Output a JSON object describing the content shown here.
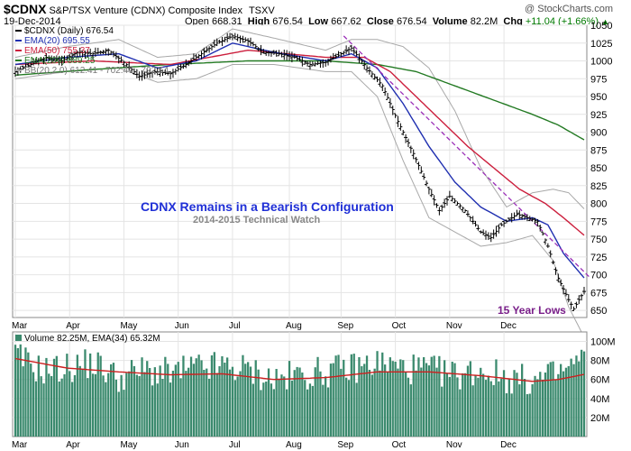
{
  "header": {
    "symbol": "$CDNX",
    "index_name": "S&P/TSX Venture (CDNX) Composite Index",
    "exchange": "TSXV",
    "brand": "@ StockCharts.com",
    "date": "19-Dec-2014",
    "open_label": "Open",
    "open_value": "668.31",
    "high_label": "High",
    "high_value": "676.54",
    "low_label": "Low",
    "low_value": "667.62",
    "close_label": "Close",
    "close_value": "676.54",
    "volume_label": "Volume",
    "volume_value": "82.2M",
    "chg_label": "Chg",
    "chg_value": "+11.04 (+1.66%)",
    "chg_icon": "triangle-up-icon"
  },
  "colors": {
    "price": "#000000",
    "ema20": "#1f2fb0",
    "ema50": "#cc1f3d",
    "ema200": "#237a23",
    "bb": "#a8a8a8",
    "trend": "#9b2fb8",
    "title": "#1f2fd6",
    "annotation": "#7a1f8a",
    "volume_bar": "#3b8a6e",
    "volume_ema": "#cc1f1f"
  },
  "chart_data": [
    {
      "type": "line",
      "panel": "price",
      "y_axis_side": "right",
      "ylim": [
        640,
        1050
      ],
      "y_ticks": [
        650,
        675,
        700,
        725,
        750,
        775,
        800,
        825,
        850,
        875,
        900,
        925,
        950,
        975,
        1000,
        1025,
        1050
      ],
      "grid": true,
      "x_month_labels": [
        "Mar",
        "Apr",
        "May",
        "Jun",
        "Jul",
        "Aug",
        "Sep",
        "Oct",
        "Nov",
        "Dec"
      ],
      "x_month_index": [
        0,
        21,
        42,
        63,
        84,
        106,
        126,
        147,
        168,
        189
      ],
      "title": "CDNX Remains in a Bearish Configuration",
      "subtitle": "2014-2015 Technical Watch",
      "annotation": "15 Year Lows",
      "legend": [
        {
          "label": "$CDNX (Daily) 676.54",
          "key": "price"
        },
        {
          "label": "EMA(20) 695.55",
          "key": "ema20"
        },
        {
          "label": "EMA(50) 755.37",
          "key": "ema50"
        },
        {
          "label": "EMA(200) 889.25",
          "key": "ema200"
        },
        {
          "label": "BB(20,2.0) 612.41 - 702.47 - 792.54",
          "key": "bb"
        }
      ],
      "price_anchors": [
        [
          0,
          985
        ],
        [
          6,
          995
        ],
        [
          12,
          1005
        ],
        [
          18,
          1000
        ],
        [
          24,
          1012
        ],
        [
          30,
          1010
        ],
        [
          36,
          1015
        ],
        [
          42,
          998
        ],
        [
          48,
          978
        ],
        [
          54,
          985
        ],
        [
          60,
          982
        ],
        [
          66,
          995
        ],
        [
          72,
          1010
        ],
        [
          78,
          1025
        ],
        [
          84,
          1035
        ],
        [
          90,
          1028
        ],
        [
          96,
          1012
        ],
        [
          102,
          1010
        ],
        [
          108,
          1005
        ],
        [
          114,
          995
        ],
        [
          120,
          998
        ],
        [
          126,
          1010
        ],
        [
          130,
          1018
        ],
        [
          136,
          990
        ],
        [
          142,
          965
        ],
        [
          148,
          915
        ],
        [
          154,
          870
        ],
        [
          160,
          820
        ],
        [
          164,
          790
        ],
        [
          168,
          810
        ],
        [
          174,
          790
        ],
        [
          180,
          760
        ],
        [
          184,
          752
        ],
        [
          188,
          770
        ],
        [
          194,
          785
        ],
        [
          198,
          780
        ],
        [
          202,
          775
        ],
        [
          206,
          740
        ],
        [
          210,
          695
        ],
        [
          214,
          665
        ],
        [
          216,
          652
        ],
        [
          218,
          665
        ],
        [
          220,
          676.54
        ]
      ],
      "ema20_anchors": [
        [
          0,
          995
        ],
        [
          20,
          1005
        ],
        [
          40,
          1010
        ],
        [
          55,
          990
        ],
        [
          70,
          1000
        ],
        [
          84,
          1025
        ],
        [
          100,
          1012
        ],
        [
          120,
          1000
        ],
        [
          130,
          1010
        ],
        [
          140,
          990
        ],
        [
          150,
          940
        ],
        [
          160,
          880
        ],
        [
          170,
          830
        ],
        [
          180,
          795
        ],
        [
          190,
          775
        ],
        [
          200,
          780
        ],
        [
          206,
          770
        ],
        [
          212,
          730
        ],
        [
          220,
          695.55
        ]
      ],
      "ema50_anchors": [
        [
          0,
          995
        ],
        [
          30,
          1000
        ],
        [
          60,
          995
        ],
        [
          90,
          1015
        ],
        [
          120,
          1005
        ],
        [
          135,
          1005
        ],
        [
          145,
          985
        ],
        [
          155,
          950
        ],
        [
          165,
          915
        ],
        [
          175,
          880
        ],
        [
          185,
          850
        ],
        [
          195,
          820
        ],
        [
          205,
          800
        ],
        [
          212,
          780
        ],
        [
          220,
          755.37
        ]
      ],
      "ema200_anchors": [
        [
          0,
          980
        ],
        [
          30,
          988
        ],
        [
          60,
          995
        ],
        [
          90,
          1000
        ],
        [
          120,
          1000
        ],
        [
          140,
          995
        ],
        [
          155,
          985
        ],
        [
          170,
          965
        ],
        [
          185,
          945
        ],
        [
          200,
          925
        ],
        [
          210,
          910
        ],
        [
          220,
          889.25
        ]
      ],
      "bb_upper_anchors": [
        [
          0,
          1005
        ],
        [
          20,
          1020
        ],
        [
          40,
          1030
        ],
        [
          55,
          1005
        ],
        [
          70,
          1010
        ],
        [
          84,
          1045
        ],
        [
          100,
          1032
        ],
        [
          120,
          1015
        ],
        [
          130,
          1030
        ],
        [
          140,
          1030
        ],
        [
          150,
          1020
        ],
        [
          160,
          990
        ],
        [
          170,
          930
        ],
        [
          180,
          850
        ],
        [
          190,
          795
        ],
        [
          200,
          815
        ],
        [
          208,
          820
        ],
        [
          214,
          815
        ],
        [
          220,
          792.54
        ]
      ],
      "bb_lower_anchors": [
        [
          0,
          975
        ],
        [
          20,
          985
        ],
        [
          40,
          990
        ],
        [
          55,
          970
        ],
        [
          70,
          975
        ],
        [
          84,
          995
        ],
        [
          100,
          995
        ],
        [
          120,
          985
        ],
        [
          130,
          985
        ],
        [
          140,
          950
        ],
        [
          150,
          860
        ],
        [
          160,
          780
        ],
        [
          170,
          760
        ],
        [
          180,
          740
        ],
        [
          190,
          745
        ],
        [
          200,
          755
        ],
        [
          208,
          720
        ],
        [
          214,
          655
        ],
        [
          220,
          612.41
        ]
      ],
      "trendline": [
        [
          127,
          1035
        ],
        [
          222,
          697
        ]
      ]
    },
    {
      "type": "bar",
      "panel": "volume",
      "y_axis_side": "right",
      "ylim": [
        0,
        110
      ],
      "y_ticks": [
        20,
        40,
        60,
        80,
        100
      ],
      "y_tick_labels": [
        "20M",
        "40M",
        "60M",
        "80M",
        "100M"
      ],
      "legend": [
        {
          "label": "Volume 82.25M, EMA(34) 65.32M",
          "key": "volume"
        }
      ],
      "volume_anchors": [
        [
          0,
          85
        ],
        [
          10,
          70
        ],
        [
          20,
          72
        ],
        [
          30,
          78
        ],
        [
          40,
          62
        ],
        [
          50,
          70
        ],
        [
          60,
          66
        ],
        [
          70,
          72
        ],
        [
          80,
          74
        ],
        [
          90,
          70
        ],
        [
          100,
          60
        ],
        [
          110,
          65
        ],
        [
          120,
          68
        ],
        [
          130,
          72
        ],
        [
          140,
          78
        ],
        [
          150,
          72
        ],
        [
          160,
          70
        ],
        [
          170,
          65
        ],
        [
          180,
          70
        ],
        [
          190,
          62
        ],
        [
          200,
          58
        ],
        [
          210,
          66
        ],
        [
          220,
          82.25
        ]
      ],
      "volume_ema_anchors": [
        [
          0,
          82
        ],
        [
          20,
          72
        ],
        [
          40,
          68
        ],
        [
          60,
          65
        ],
        [
          80,
          66
        ],
        [
          100,
          60
        ],
        [
          120,
          62
        ],
        [
          140,
          68
        ],
        [
          160,
          68
        ],
        [
          180,
          64
        ],
        [
          200,
          58
        ],
        [
          210,
          60
        ],
        [
          220,
          65.32
        ]
      ]
    }
  ]
}
